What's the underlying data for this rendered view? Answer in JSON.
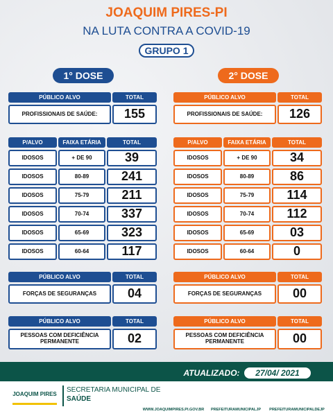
{
  "header": {
    "title": "JOAQUIM PIRES-PI",
    "subtitle": "NA LUTA CONTRA A COVID-19",
    "group": "GRUPO 1"
  },
  "doses": [
    {
      "title": "1° DOSE",
      "color": "#1e4e92",
      "professionals": {
        "headers": [
          "PÚBLICO ALVO",
          "TOTAL"
        ],
        "rows": [
          [
            "PROFISSIONAIS DE SAÚDE:",
            "155"
          ]
        ]
      },
      "elderly": {
        "headers": [
          "P/ALVO",
          "FAIXA ETÁRIA",
          "TOTAL"
        ],
        "rows": [
          [
            "IDOSOS",
            "+ DE 90",
            "39"
          ],
          [
            "IDOSOS",
            "80-89",
            "241"
          ],
          [
            "IDOSOS",
            "75-79",
            "211"
          ],
          [
            "IDOSOS",
            "70-74",
            "337"
          ],
          [
            "IDOSOS",
            "65-69",
            "323"
          ],
          [
            "IDOSOS",
            "60-64",
            "117"
          ]
        ]
      },
      "security": {
        "headers": [
          "PÚBLICO ALVO",
          "TOTAL"
        ],
        "rows": [
          [
            "FORÇAS DE SEGURANÇAS",
            "04"
          ]
        ]
      },
      "disability": {
        "headers": [
          "PÚBLICO ALVO",
          "TOTAL"
        ],
        "rows": [
          [
            "PESSOAS COM DEFICIÊNCIA PERMANENTE",
            "02"
          ]
        ]
      }
    },
    {
      "title": "2° DOSE",
      "color": "#ee6a1c",
      "professionals": {
        "headers": [
          "PÚBLICO ALVO",
          "TOTAL"
        ],
        "rows": [
          [
            "PROFISSIONAIS DE SAÚDE:",
            "126"
          ]
        ]
      },
      "elderly": {
        "headers": [
          "P/ALVO",
          "FAIXA ETÁRIA",
          "TOTAL"
        ],
        "rows": [
          [
            "IDOSOS",
            "+ DE 90",
            "34"
          ],
          [
            "IDOSOS",
            "80-89",
            "86"
          ],
          [
            "IDOSOS",
            "75-79",
            "114"
          ],
          [
            "IDOSOS",
            "70-74",
            "112"
          ],
          [
            "IDOSOS",
            "65-69",
            "03"
          ],
          [
            "IDOSOS",
            "60-64",
            "0"
          ]
        ]
      },
      "security": {
        "headers": [
          "PÚBLICO ALVO",
          "TOTAL"
        ],
        "rows": [
          [
            "FORÇAS DE SEGURANÇAS",
            "00"
          ]
        ]
      },
      "disability": {
        "headers": [
          "PÚBLICO ALVO",
          "TOTAL"
        ],
        "rows": [
          [
            "PESSOAS COM DEFICIÊNCIA PERMANENTE",
            "00"
          ]
        ]
      }
    }
  ],
  "footer": {
    "updated_label": "ATUALIZADO:",
    "updated_date": "27/04/ 2021",
    "logo": "JOAQUIM PIRES",
    "department": "SECRETARIA MUNICIPAL DE",
    "department_2": "SAÚDE",
    "links": [
      "WWW.JOAQUIMPIRES.PI.GOV.BR",
      "PREFEITURAMUNICIPALJP",
      "PREFEITURAMUNICIPALDEJP"
    ]
  }
}
